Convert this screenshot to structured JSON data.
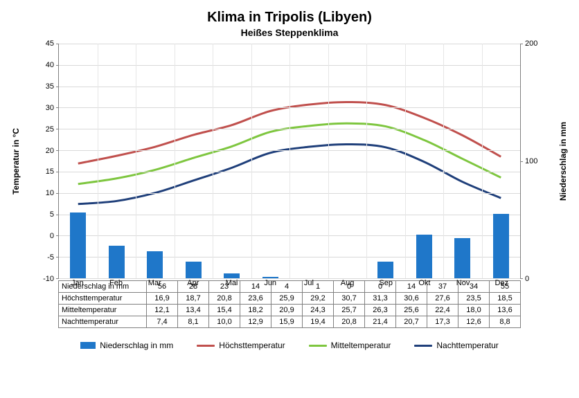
{
  "title": "Klima in Tripolis (Libyen)",
  "subtitle": "Heißes Steppenklima",
  "ylabel_left": "Temperatur in °C",
  "ylabel_right": "Niederschlag in mm",
  "months": [
    "Jan",
    "Feb",
    "Mar",
    "Apr",
    "Mai",
    "Jun",
    "Jul",
    "Aug",
    "Sep",
    "Okt",
    "Nov",
    "Dez"
  ],
  "y_left": {
    "min": -10,
    "max": 45,
    "step": 5
  },
  "y_right": {
    "min": 0,
    "max": 200,
    "ticks": [
      0,
      100,
      200
    ]
  },
  "series": {
    "precipitation": {
      "label": "Niederschlag in mm",
      "type": "bar",
      "color": "#1f77c9",
      "bar_width_frac": 0.42,
      "data": [
        56,
        28,
        23,
        14,
        4,
        1,
        0,
        0,
        14,
        37,
        34,
        55
      ]
    },
    "high": {
      "label": "Höchsttemperatur",
      "type": "line",
      "color": "#c0504d",
      "data": [
        16.9,
        18.7,
        20.8,
        23.6,
        25.9,
        29.2,
        30.7,
        31.3,
        30.6,
        27.6,
        23.5,
        18.5
      ]
    },
    "mean": {
      "label": "Mitteltemperatur",
      "type": "line",
      "color": "#7ec63f",
      "data": [
        12.1,
        13.4,
        15.4,
        18.2,
        20.9,
        24.3,
        25.7,
        26.3,
        25.6,
        22.4,
        18.0,
        13.6
      ]
    },
    "low": {
      "label": "Nachttemperatur",
      "type": "line",
      "color": "#1f3f7a",
      "data": [
        7.4,
        8.1,
        10.0,
        12.9,
        15.9,
        19.4,
        20.8,
        21.4,
        20.7,
        17.3,
        12.6,
        8.8
      ]
    }
  },
  "table_rows": [
    {
      "label": "Niederschlag in mm",
      "key": "precipitation",
      "decimals": 0
    },
    {
      "label": "Höchsttemperatur",
      "key": "high",
      "decimals": 1
    },
    {
      "label": "Mitteltemperatur",
      "key": "mean",
      "decimals": 1
    },
    {
      "label": "Nachttemperatur",
      "key": "low",
      "decimals": 1
    }
  ],
  "legend": [
    "precipitation",
    "high",
    "mean",
    "low"
  ],
  "style": {
    "background": "#ffffff",
    "grid_color": "#d9d9d9",
    "axis_color": "#7f7f7f",
    "line_width": 3,
    "title_fontsize": 20,
    "subtitle_fontsize": 14,
    "tick_fontsize": 11
  }
}
